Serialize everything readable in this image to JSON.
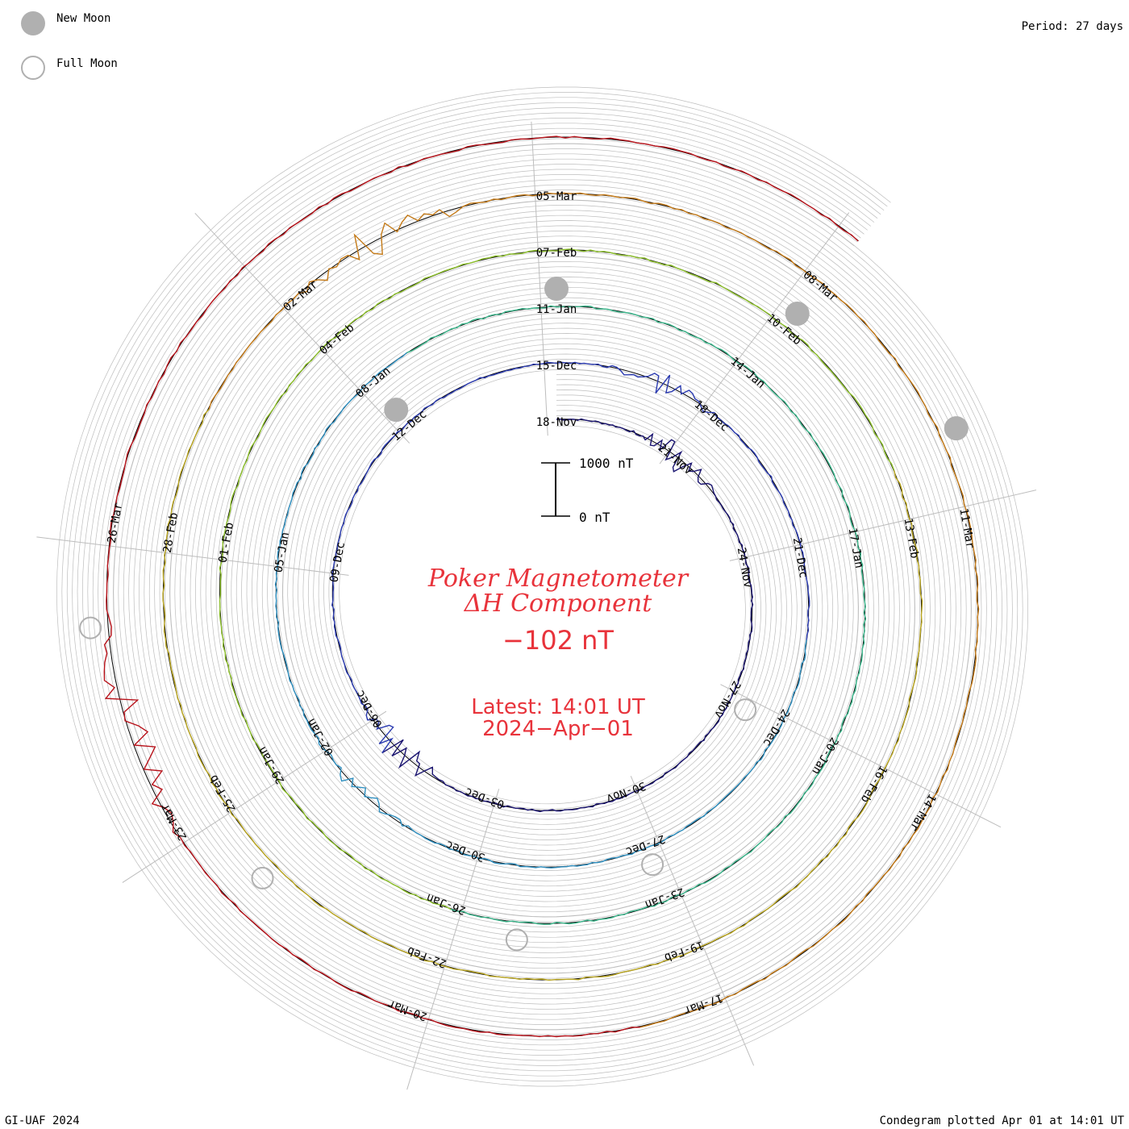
{
  "header": {
    "legend_new_moon": "New Moon",
    "legend_full_moon": "Full Moon",
    "period": "Period: 27 days"
  },
  "center": {
    "title_line1": "Poker Magnetometer",
    "title_line2": "ΔH Component",
    "current_value": "−102 nT",
    "latest_line1": "Latest: 14:01 UT",
    "latest_line2": "2024−Apr−01",
    "scale_top": "1000 nT",
    "scale_bottom": "0 nT"
  },
  "footer": {
    "credit": "GI-UAF 2024",
    "plotted": "Condegram plotted Apr 01 at 14:01 UT"
  },
  "colors": {
    "text_red": "#e8333b",
    "moon_fill": "#b0b0b0",
    "grid": "#bdbdbd",
    "cycle_colors": [
      "#1a1470",
      "#2a3ab0",
      "#2e8fc0",
      "#39b58a",
      "#8cbf2a",
      "#b8a41e",
      "#c47a18",
      "#b8121a"
    ]
  },
  "chart_data": {
    "type": "line",
    "variant": "condegram (spiral time series)",
    "period_days": 27,
    "scale_nT": [
      0,
      1000
    ],
    "cycles": [
      {
        "start": "18-Nov",
        "labels": [
          "18-Nov",
          "21-Nov",
          "24-Nov",
          "27-Nov",
          "30-Nov",
          "03-Dec",
          "06-Dec",
          "09-Dec",
          "12-Dec"
        ]
      },
      {
        "start": "15-Dec",
        "labels": [
          "15-Dec",
          "18-Dec",
          "21-Dec",
          "24-Dec",
          "27-Dec",
          "30-Dec",
          "02-Jan",
          "05-Jan",
          "08-Jan"
        ]
      },
      {
        "start": "11-Jan",
        "labels": [
          "11-Jan",
          "14-Jan",
          "17-Jan",
          "20-Jan",
          "23-Jan",
          "26-Jan",
          "29-Jan",
          "01-Feb",
          "04-Feb"
        ]
      },
      {
        "start": "07-Feb",
        "labels": [
          "07-Feb",
          "10-Feb",
          "13-Feb",
          "16-Feb",
          "19-Feb",
          "22-Feb",
          "25-Feb",
          "28-Feb",
          "02-Mar"
        ]
      },
      {
        "start": "05-Mar",
        "labels": [
          "05-Mar",
          "08-Mar",
          "11-Mar",
          "14-Mar",
          "17-Mar",
          "20-Mar",
          "23-Mar",
          "26-Mar"
        ]
      }
    ],
    "new_moons": [
      "12-Dec",
      "11-Jan",
      "10-Feb",
      "10-Mar"
    ],
    "full_moons": [
      "27-Nov",
      "27-Dec",
      "25-Jan",
      "24-Feb",
      "25-Mar"
    ],
    "latest": {
      "time": "14:01 UT",
      "date": "2024-Apr-01",
      "value_nT": -102
    },
    "disturbances": [
      {
        "date": "21-Nov",
        "amplitude_nT": 600
      },
      {
        "date": "05-Dec",
        "amplitude_nT": 650
      },
      {
        "date": "17-Dec",
        "amplitude_nT": 500
      },
      {
        "date": "01-Jan",
        "amplitude_nT": 300
      },
      {
        "date": "03-Mar",
        "amplitude_nT": 550
      },
      {
        "date": "24-Mar",
        "amplitude_nT": 900
      }
    ]
  }
}
